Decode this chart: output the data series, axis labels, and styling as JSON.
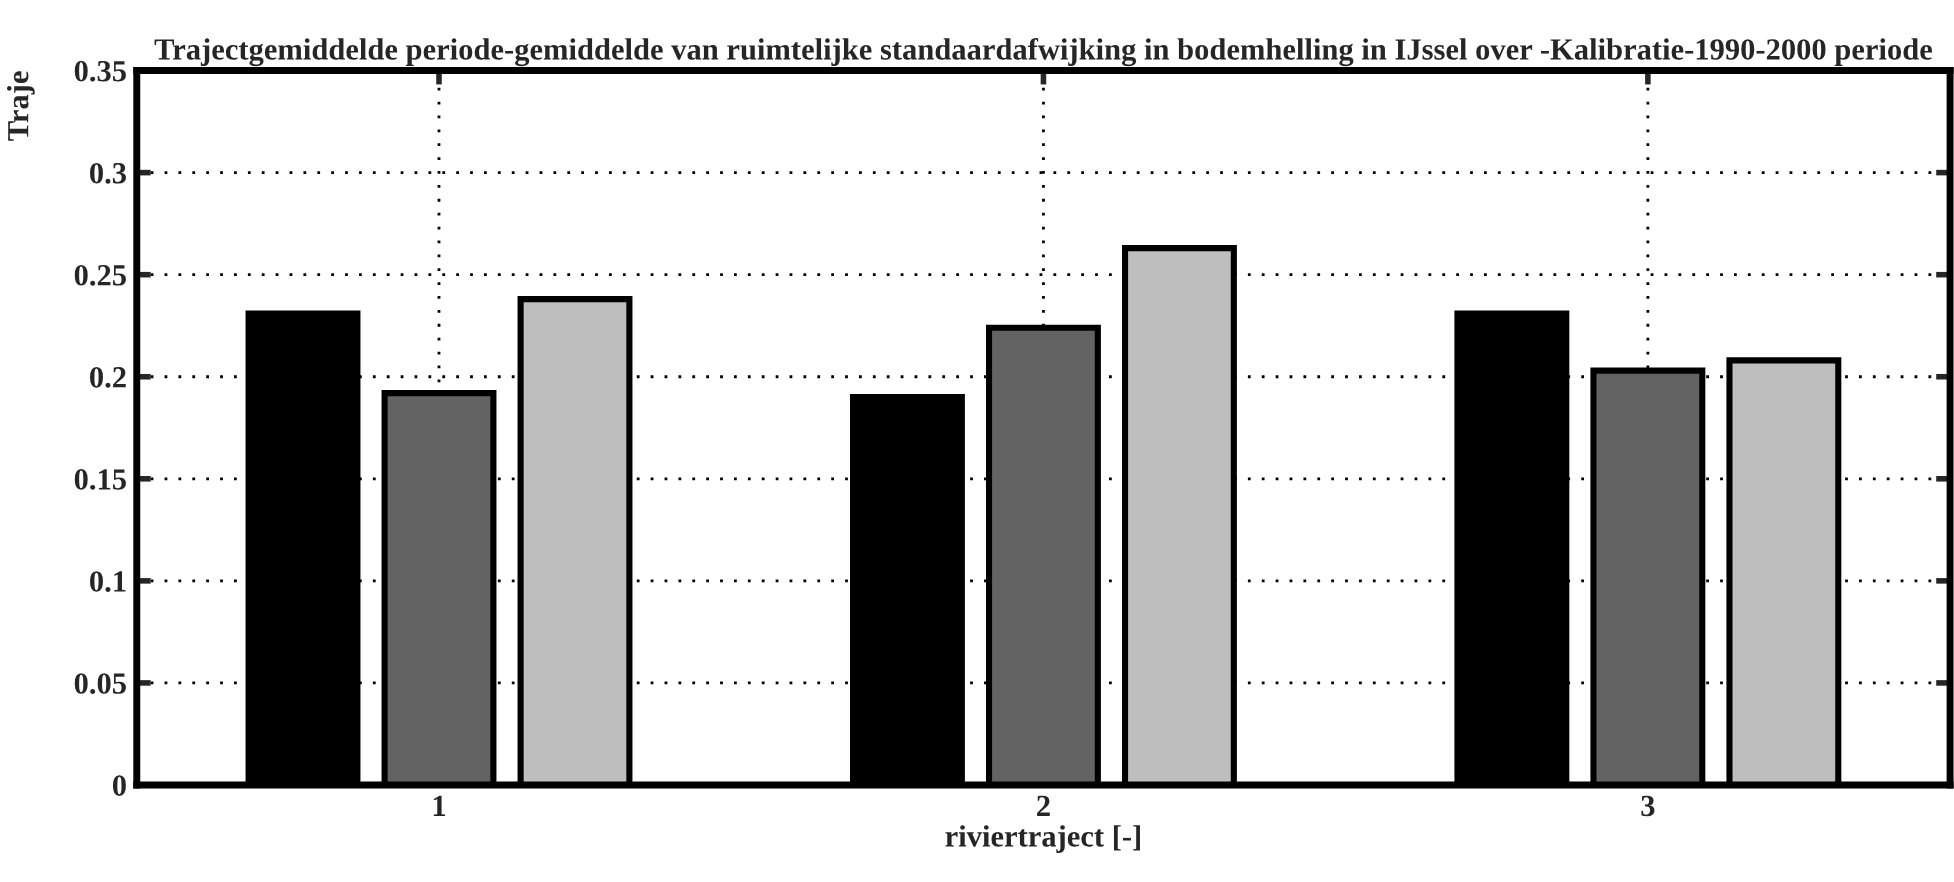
{
  "chart_data": {
    "type": "bar",
    "title": "Trajectgemiddelde periode-gemiddelde van ruimtelijke standaardafwijking in bodemhelling in IJssel over -Kalibratie-1990-2000 periode",
    "xlabel": "riviertraject [-]",
    "ylabel": "Traje",
    "categories": [
      "1",
      "2",
      "3"
    ],
    "series": [
      {
        "color": "#000000",
        "values": [
          0.231,
          0.19,
          0.231
        ]
      },
      {
        "color": "#636363",
        "values": [
          0.192,
          0.224,
          0.203
        ]
      },
      {
        "color": "#bebebe",
        "values": [
          0.238,
          0.263,
          0.208
        ]
      }
    ],
    "ylim": [
      0,
      0.35
    ],
    "yticks": [
      {
        "value": 0,
        "label": "0"
      },
      0.05,
      0.1,
      0.15,
      0.2,
      0.25,
      0.3,
      0.35
    ],
    "grid": true,
    "legend": false
  }
}
